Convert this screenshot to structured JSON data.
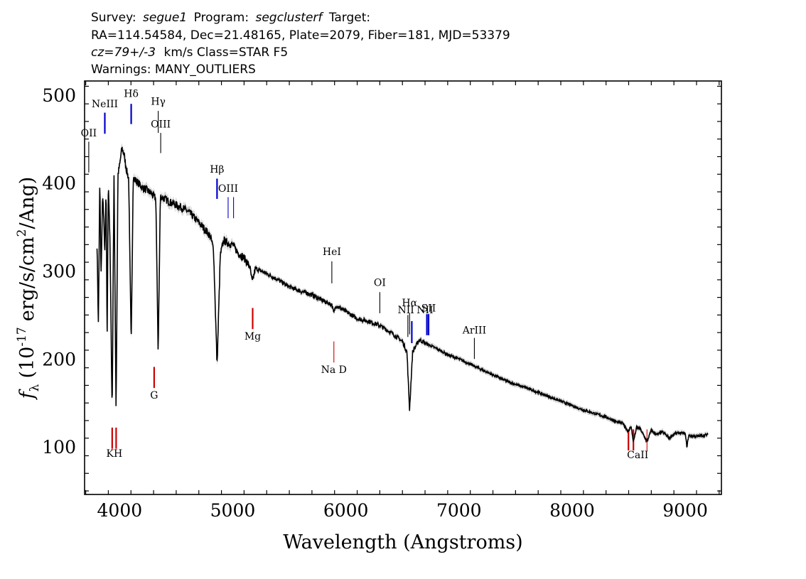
{
  "chart_data": {
    "type": "line",
    "header": {
      "line1": {
        "survey_label": "Survey:",
        "survey": "segue1",
        "program_label": "Program:",
        "program": "segclusterf",
        "target_label": "Target:"
      },
      "line2": "RA=114.54584, Dec=21.48165, Plate=2079, Fiber=181, MJD=53379",
      "line3": {
        "cz": "cz=79+/-3",
        "rest": "km/s  Class=STAR F5"
      },
      "line4": "Warnings: MANY_OUTLIERS"
    },
    "xlabel": "Wavelength (Angstroms)",
    "ylabel": {
      "f": "f",
      "sub": "λ",
      "pre": "(10",
      "exp": "-17",
      "mid": "erg/s/cm",
      "exp2": "2",
      "post": "/Ang)"
    },
    "xlim": [
      3690,
      9320
    ],
    "ylim": [
      46,
      516
    ],
    "x_ticks": [
      4000,
      5000,
      6000,
      7000,
      8000,
      9000
    ],
    "y_ticks": [
      100,
      200,
      300,
      400,
      500
    ],
    "spectrum": {
      "name": "flux",
      "color": "#000000",
      "error_color": "#999999",
      "x_range": [
        3800,
        9200
      ],
      "points": [
        [
          3800,
          330
        ],
        [
          3812,
          240
        ],
        [
          3825,
          405
        ],
        [
          3835,
          290
        ],
        [
          3850,
          390
        ],
        [
          3870,
          320
        ],
        [
          3880,
          395
        ],
        [
          3889,
          215
        ],
        [
          3900,
          405
        ],
        [
          3915,
          330
        ],
        [
          3933.7,
          138
        ],
        [
          3950,
          410
        ],
        [
          3968.5,
          140
        ],
        [
          3985,
          410
        ],
        [
          4000,
          420
        ],
        [
          4020,
          440
        ],
        [
          4040,
          432
        ],
        [
          4060,
          415
        ],
        [
          4080,
          405
        ],
        [
          4101.7,
          217
        ],
        [
          4120,
          405
        ],
        [
          4150,
          402
        ],
        [
          4200,
          395
        ],
        [
          4240,
          392
        ],
        [
          4280,
          388
        ],
        [
          4320,
          382
        ],
        [
          4340.5,
          207
        ],
        [
          4360,
          385
        ],
        [
          4400,
          382
        ],
        [
          4450,
          378
        ],
        [
          4500,
          375
        ],
        [
          4550,
          372
        ],
        [
          4600,
          368
        ],
        [
          4650,
          362
        ],
        [
          4700,
          355
        ],
        [
          4750,
          348
        ],
        [
          4800,
          340
        ],
        [
          4830,
          325
        ],
        [
          4861.3,
          192
        ],
        [
          4890,
          318
        ],
        [
          4920,
          335
        ],
        [
          4950,
          332
        ],
        [
          5000,
          330
        ],
        [
          5050,
          320
        ],
        [
          5100,
          315
        ],
        [
          5150,
          305
        ],
        [
          5172,
          287
        ],
        [
          5200,
          303
        ],
        [
          5300,
          297
        ],
        [
          5400,
          290
        ],
        [
          5500,
          282
        ],
        [
          5600,
          277
        ],
        [
          5700,
          273
        ],
        [
          5800,
          266
        ],
        [
          5875,
          262
        ],
        [
          5893,
          252
        ],
        [
          5910,
          261
        ],
        [
          6000,
          254
        ],
        [
          6100,
          246
        ],
        [
          6200,
          243
        ],
        [
          6300,
          238
        ],
        [
          6400,
          230
        ],
        [
          6500,
          220
        ],
        [
          6540,
          208
        ],
        [
          6562.8,
          142
        ],
        [
          6590,
          208
        ],
        [
          6650,
          222
        ],
        [
          6700,
          218
        ],
        [
          6800,
          212
        ],
        [
          6900,
          205
        ],
        [
          7000,
          200
        ],
        [
          7100,
          194
        ],
        [
          7200,
          188
        ],
        [
          7300,
          182
        ],
        [
          7400,
          176
        ],
        [
          7500,
          171
        ],
        [
          7600,
          167
        ],
        [
          7700,
          162
        ],
        [
          7800,
          157
        ],
        [
          7900,
          152
        ],
        [
          8000,
          147
        ],
        [
          8100,
          142
        ],
        [
          8200,
          138
        ],
        [
          8300,
          134
        ],
        [
          8400,
          128
        ],
        [
          8450,
          127
        ],
        [
          8498,
          117
        ],
        [
          8520,
          124
        ],
        [
          8542,
          106
        ],
        [
          8570,
          122
        ],
        [
          8600,
          121
        ],
        [
          8662,
          106
        ],
        [
          8700,
          119
        ],
        [
          8750,
          114
        ],
        [
          8800,
          117
        ],
        [
          8862,
          110
        ],
        [
          8900,
          115
        ],
        [
          8950,
          116
        ],
        [
          9000,
          115
        ],
        [
          9015,
          100
        ],
        [
          9030,
          113
        ],
        [
          9100,
          112
        ],
        [
          9150,
          113
        ],
        [
          9200,
          114
        ]
      ]
    },
    "emission_lines": [
      {
        "label": "OII",
        "x": 3727,
        "y0": 412,
        "y1": 447,
        "label_y": 453,
        "color": "#000000"
      },
      {
        "label": "NeIII",
        "x": 3869,
        "y0": 456,
        "y1": 480,
        "label_y": 486,
        "color": "#0000cc",
        "thick": true
      },
      {
        "label": "Hδ",
        "x": 4102,
        "y0": 467,
        "y1": 490,
        "label_y": 498,
        "color": "#0000cc",
        "thick": true
      },
      {
        "label": "Hγ",
        "x": 4341,
        "y0": 457,
        "y1": 482,
        "label_y": 489,
        "color": "#000000"
      },
      {
        "label": "OIII",
        "x": 4363,
        "y0": 434,
        "y1": 457,
        "label_y": 463,
        "color": "#000000"
      },
      {
        "label": "Hβ",
        "x": 4861,
        "y0": 382,
        "y1": 405,
        "label_y": 412,
        "color": "#0000cc",
        "thick": true
      },
      {
        "label": "OIII",
        "x": 4959,
        "y0": 360,
        "y1": 384,
        "label_y": 390,
        "color": "#0000cc"
      },
      {
        "label": "",
        "x": 5007,
        "y0": 360,
        "y1": 384,
        "color": "#0000cc"
      },
      {
        "label": "HeI",
        "x": 5876,
        "y0": 286,
        "y1": 311,
        "label_y": 318,
        "color": "#000000"
      },
      {
        "label": "OI",
        "x": 6300,
        "y0": 252,
        "y1": 276,
        "label_y": 283,
        "color": "#000000"
      },
      {
        "label": "NII",
        "x": 6548,
        "y0": 225,
        "y1": 250,
        "label_y": 252,
        "label_anchor": "end",
        "color": "#000000"
      },
      {
        "label": "Hα",
        "x": 6563,
        "y0": 228,
        "y1": 252,
        "label_y": 260,
        "color": "#000000"
      },
      {
        "label": "",
        "x": 6583,
        "y0": 218,
        "y1": 243,
        "color": "#0000cc",
        "thick": true
      },
      {
        "label": "NII",
        "x": 6716,
        "y0": 227,
        "y1": 251,
        "label_y": 252,
        "label_anchor": "end",
        "color": "#0000cc",
        "thick": true
      },
      {
        "label": "SII",
        "x": 6731,
        "y0": 227,
        "y1": 251,
        "label_y": 254,
        "color": "#0000cc",
        "thick": true
      },
      {
        "label": "ArIII",
        "x": 7136,
        "y0": 200,
        "y1": 224,
        "label_y": 229,
        "color": "#000000"
      }
    ],
    "absorption_lines": [
      {
        "label": "",
        "x": 3934,
        "y0": 98,
        "y1": 122,
        "color": "#cc0000",
        "thick": true
      },
      {
        "label": "KH",
        "x": 3953,
        "y0": 89,
        "y1": 0,
        "color": "#cc0000",
        "label_only": true
      },
      {
        "label": "",
        "x": 3969,
        "y0": 98,
        "y1": 122,
        "color": "#cc0000",
        "thick": true
      },
      {
        "label": "G",
        "x": 4305,
        "y0": 167,
        "y1": 191,
        "label_y": 155,
        "color": "#cc0000",
        "thick": true
      },
      {
        "label": "Mg",
        "x": 5176,
        "y0": 234,
        "y1": 258,
        "label_y": 222,
        "color": "#cc0000",
        "thick": true
      },
      {
        "label": "Na D",
        "x": 5894,
        "y0": 196,
        "y1": 220,
        "label_y": 184,
        "color": "#cc0000"
      },
      {
        "label": "",
        "x": 8498,
        "y0": 96,
        "y1": 120,
        "color": "#cc0000",
        "thick": true
      },
      {
        "label": "",
        "x": 8542,
        "y0": 96,
        "y1": 120,
        "color": "#cc0000",
        "thick": true
      },
      {
        "label": "CaII",
        "x": 8580,
        "y0": 87,
        "y1": 0,
        "color": "#cc0000",
        "label_only": true
      },
      {
        "label": "",
        "x": 8662,
        "y0": 96,
        "y1": 120,
        "color": "#cc0000"
      }
    ]
  }
}
